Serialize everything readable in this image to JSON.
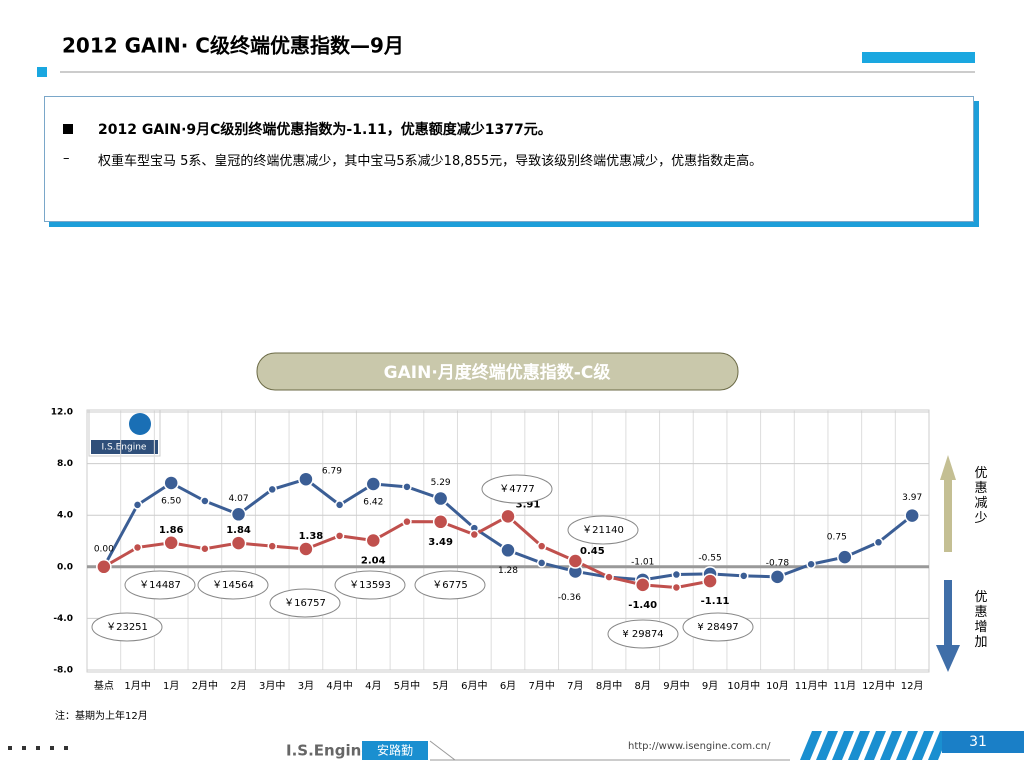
{
  "header": {
    "title": "2012 GAIN· C级终端优惠指数—9月"
  },
  "summary": {
    "bullet": "2012 GAIN·9月C级别终端优惠指数为-1.11，优惠额度减少1377元。",
    "detail": "权重车型宝马 5系、皇冠的终端优惠减少，其中宝马5系减少18,855元，导致该级别终端优惠减少，优惠指数走高。"
  },
  "chart_data": {
    "type": "line",
    "title": "GAIN·月度终端优惠指数-C级",
    "categories": [
      "基点",
      "1月中",
      "1月",
      "2月中",
      "2月",
      "3月中",
      "3月",
      "4月中",
      "4月",
      "5月中",
      "5月",
      "6月中",
      "6月",
      "7月中",
      "7月",
      "8月中",
      "8月",
      "9月中",
      "9月",
      "10月中",
      "10月",
      "11月中",
      "11月",
      "12月中",
      "12月"
    ],
    "series": [
      {
        "color": "#3b5e95",
        "values": [
          0,
          4.8,
          6.5,
          5.1,
          4.07,
          6.0,
          6.79,
          4.8,
          6.42,
          6.2,
          5.29,
          3.0,
          1.28,
          0.3,
          -0.36,
          -0.8,
          -1.01,
          -0.6,
          -0.55,
          -0.7,
          -0.78,
          0.2,
          0.75,
          1.9,
          3.97
        ],
        "value_labels": [
          "0.00",
          null,
          "6.50",
          null,
          "4.07",
          null,
          "6.79",
          null,
          "6.42",
          null,
          "5.29",
          null,
          "1.28",
          null,
          "-0.36",
          null,
          "-1.01",
          null,
          "-0.55",
          null,
          "-0.78",
          null,
          "0.75",
          null,
          "3.97"
        ]
      },
      {
        "color": "#c0504d",
        "values": [
          0,
          1.5,
          1.86,
          1.4,
          1.84,
          1.6,
          1.38,
          2.4,
          2.04,
          3.5,
          3.49,
          2.5,
          3.91,
          1.6,
          0.45,
          -0.8,
          -1.4,
          -1.6,
          -1.11,
          null,
          null,
          null,
          null,
          null,
          null
        ],
        "value_labels": [
          null,
          null,
          "1.86",
          null,
          "1.84",
          null,
          "1.38",
          null,
          "2.04",
          null,
          "3.49",
          null,
          "3.91",
          null,
          "0.45",
          null,
          "-1.40",
          null,
          "-1.11",
          null,
          null,
          null,
          null,
          null,
          null
        ]
      }
    ],
    "ylim": [
      -8,
      12
    ],
    "yticks": [
      {
        "value": -8,
        "label": "-8.0"
      },
      {
        "value": -4,
        "label": "-4.0"
      },
      {
        "value": 0,
        "label": "0.0"
      },
      {
        "value": 4,
        "label": "4.0"
      },
      {
        "value": 8,
        "label": "8.0"
      },
      {
        "value": 12,
        "label": "12.0"
      }
    ],
    "grid": true,
    "annotations": [
      "￥23251",
      "￥14487",
      "￥14564",
      "￥16757",
      "￥13593",
      "￥6775",
      "￥4777",
      "￥21140",
      "¥ 29874",
      "¥ 28497"
    ],
    "arrow_labels": [
      "优惠减少",
      "优惠增加"
    ],
    "note": "注：基期为上年12月",
    "logo": "I.S.Engine"
  },
  "footer": {
    "brand": "I.S.Engine",
    "brand_cn": "安路勤",
    "url": "http://www.isengine.com.cn/",
    "page": "31"
  }
}
